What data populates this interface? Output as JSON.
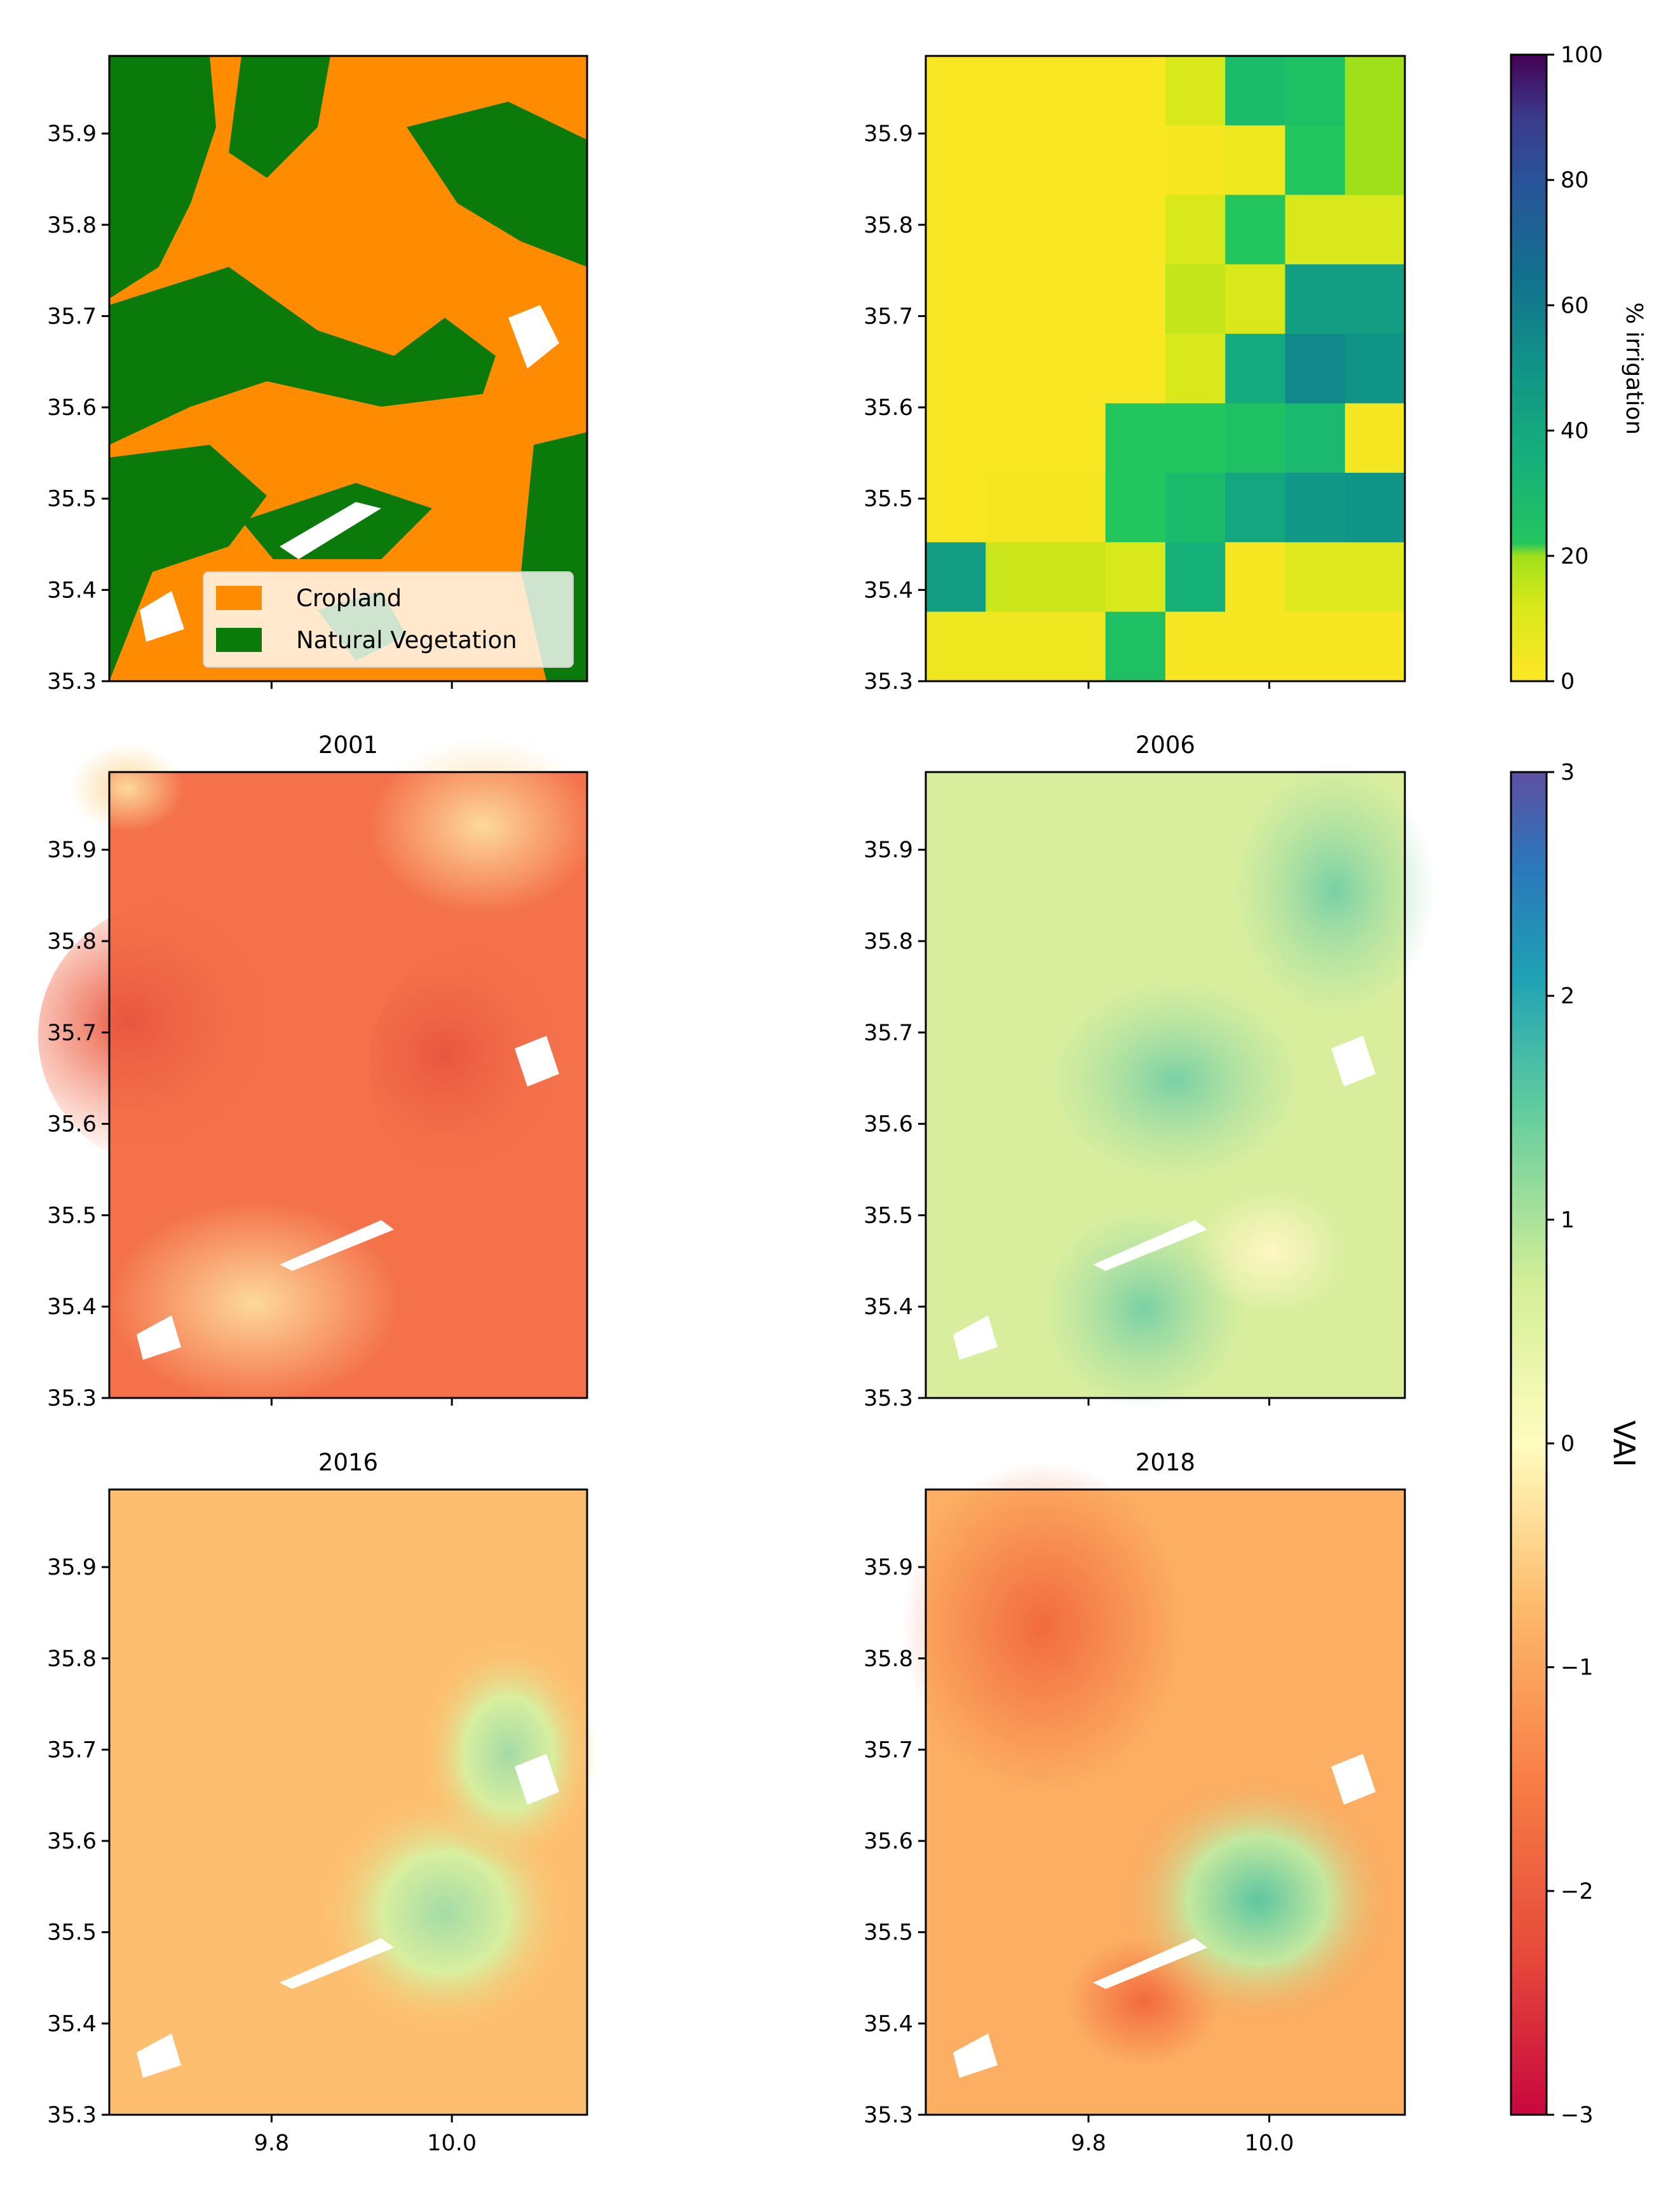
{
  "chart_data": [
    {
      "type": "heatmap",
      "title": "",
      "description_legend": [
        {
          "label": "Cropland",
          "color": "#ff8c00"
        },
        {
          "label": "Natural Vegetation",
          "color": "#0a7a0a"
        }
      ],
      "xlim": [
        9.62,
        10.15
      ],
      "ylim": [
        35.3,
        35.985
      ],
      "xticks": [
        9.8,
        10.0
      ],
      "yticks": [
        35.3,
        35.4,
        35.5,
        35.6,
        35.7,
        35.8,
        35.9
      ],
      "xtick_labels_visible": false
    },
    {
      "type": "heatmap",
      "title": "",
      "colorbar_label": "% irrigation",
      "colorbar_range": [
        0,
        100
      ],
      "colorbar_ticks": [
        0,
        20,
        40,
        60,
        80,
        100
      ],
      "xlim": [
        9.62,
        10.15
      ],
      "ylim": [
        35.3,
        35.985
      ],
      "xticks": [
        9.8,
        10.0
      ],
      "yticks": [
        35.3,
        35.4,
        35.5,
        35.6,
        35.7,
        35.8,
        35.9
      ],
      "xtick_labels_visible": false,
      "grid_values_top_to_bottom": [
        [
          1,
          1,
          1,
          1,
          12,
          28,
          25,
          20
        ],
        [
          1,
          1,
          1,
          1,
          2,
          5,
          22,
          20
        ],
        [
          1,
          1,
          1,
          1,
          12,
          22,
          12,
          12
        ],
        [
          1,
          1,
          1,
          1,
          15,
          12,
          45,
          45
        ],
        [
          1,
          1,
          1,
          1,
          12,
          38,
          55,
          50
        ],
        [
          1,
          1,
          1,
          22,
          22,
          25,
          30,
          3
        ],
        [
          1,
          3,
          3,
          22,
          28,
          40,
          48,
          50
        ],
        [
          45,
          14,
          14,
          12,
          35,
          2,
          10,
          10
        ],
        [
          5,
          5,
          5,
          25,
          2,
          2,
          2,
          2
        ]
      ]
    },
    {
      "type": "heatmap",
      "title": "2001",
      "value_mean": -1.4,
      "xlim": [
        9.62,
        10.15
      ],
      "ylim": [
        35.3,
        35.985
      ],
      "xticks": [
        9.8,
        10.0
      ],
      "yticks": [
        35.3,
        35.4,
        35.5,
        35.6,
        35.7,
        35.8,
        35.9
      ],
      "xtick_labels_visible": false
    },
    {
      "type": "heatmap",
      "title": "2006",
      "value_mean": 0.6,
      "xlim": [
        9.62,
        10.15
      ],
      "ylim": [
        35.3,
        35.985
      ],
      "xticks": [
        9.8,
        10.0
      ],
      "yticks": [
        35.3,
        35.4,
        35.5,
        35.6,
        35.7,
        35.8,
        35.9
      ],
      "xtick_labels_visible": false
    },
    {
      "type": "heatmap",
      "title": "2016",
      "value_mean": -0.8,
      "xlim": [
        9.62,
        10.15
      ],
      "ylim": [
        35.3,
        35.985
      ],
      "xticks": [
        9.8,
        10.0
      ],
      "xtick_labels": [
        "9.8",
        "10.0"
      ],
      "yticks": [
        35.3,
        35.4,
        35.5,
        35.6,
        35.7,
        35.8,
        35.9
      ]
    },
    {
      "type": "heatmap",
      "title": "2018",
      "value_mean": -0.9,
      "xlim": [
        9.62,
        10.15
      ],
      "ylim": [
        35.3,
        35.985
      ],
      "xticks": [
        9.8,
        10.0
      ],
      "xtick_labels": [
        "9.8",
        "10.0"
      ],
      "yticks": [
        35.3,
        35.4,
        35.5,
        35.6,
        35.7,
        35.8,
        35.9
      ]
    }
  ],
  "colorbars": {
    "irrigation": {
      "label": "% irrigation",
      "min": 0,
      "max": 100,
      "ticks": [
        0,
        20,
        40,
        60,
        80,
        100
      ],
      "tick_labels": [
        "0",
        "20",
        "40",
        "60",
        "80",
        "100"
      ]
    },
    "vai": {
      "label": "VAI",
      "min": -3,
      "max": 3,
      "ticks": [
        -3,
        -2,
        -1,
        0,
        1,
        2,
        3
      ],
      "tick_labels": [
        "−3",
        "−2",
        "−1",
        "0",
        "1",
        "2",
        "3"
      ]
    }
  },
  "ytick_labels": [
    "35.3",
    "35.4",
    "35.5",
    "35.6",
    "35.7",
    "35.8",
    "35.9"
  ],
  "colors": {
    "cropland": "#ff8c00",
    "natural_vegetation": "#0a7a0a",
    "vai_2001": "#f46d43",
    "vai_2006": "#d9ef9b",
    "vai_2016": "#fdbf6f",
    "vai_2018": "#fca55d"
  }
}
